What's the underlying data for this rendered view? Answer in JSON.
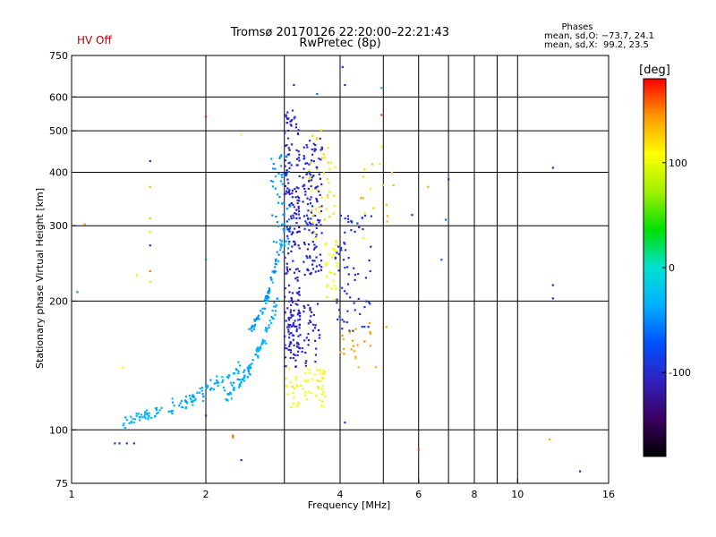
{
  "header": {
    "title_line1": "Tromsø 20170126 22:20:00–22:21:43",
    "title_line2": "RwPretec (8p)",
    "status": "HV Off"
  },
  "stats": {
    "heading": "Phases",
    "line1": "mean, sd,O: −73.7, 24.1",
    "line2": "mean, sd,X:  99.2, 23.5"
  },
  "chart_data": {
    "type": "scatter",
    "title": "Tromsø 20170126 22:20:00–22:21:43",
    "subtitle": "RwPretec (8p)",
    "xlabel": "Frequency [MHz]",
    "ylabel": "Stationary phase Virtual Height [km]",
    "xscale": "log",
    "yscale": "log",
    "xlim": [
      1,
      16
    ],
    "ylim": [
      75,
      750
    ],
    "xticks": [
      1,
      2,
      4,
      6,
      8,
      10,
      16
    ],
    "xgrid": [
      2,
      3,
      4,
      5,
      6,
      7,
      8,
      9,
      10
    ],
    "yticks": [
      75,
      100,
      200,
      300,
      400,
      500,
      600,
      750
    ],
    "ygrid": [
      100,
      200,
      300,
      400,
      500,
      600
    ],
    "colorbar": {
      "label": "[deg]",
      "range": [
        -180,
        180
      ],
      "ticks": [
        -100,
        0,
        100
      ],
      "colors": [
        "#000000",
        "#3a0060",
        "#3020c0",
        "#0050ff",
        "#00b0ff",
        "#00e0d0",
        "#00e000",
        "#a0f000",
        "#ffff00",
        "#ff9900",
        "#ff0000"
      ]
    },
    "clusters": [
      {
        "name": "low-trace",
        "xmin": 1.3,
        "xmax": 2.4,
        "ymin": 105,
        "ymax": 140,
        "phase": -35,
        "n": 120
      },
      {
        "name": "mid-trace",
        "xmin": 2.2,
        "xmax": 2.9,
        "ymin": 120,
        "ymax": 200,
        "phase": -35,
        "n": 100
      },
      {
        "name": "rise-trace",
        "xmin": 2.5,
        "xmax": 3.0,
        "ymin": 170,
        "ymax": 300,
        "phase": -45,
        "n": 70
      },
      {
        "name": "cyan-upper",
        "xmin": 2.8,
        "xmax": 3.1,
        "ymin": 260,
        "ymax": 440,
        "phase": -45,
        "n": 60
      },
      {
        "name": "blue-column-a",
        "xmin": 3.0,
        "xmax": 3.25,
        "ymin": 140,
        "ymax": 560,
        "phase": -105,
        "n": 200
      },
      {
        "name": "blue-column-b",
        "xmin": 3.3,
        "xmax": 3.65,
        "ymin": 230,
        "ymax": 480,
        "phase": -100,
        "n": 130
      },
      {
        "name": "blue-low",
        "xmin": 3.0,
        "xmax": 3.6,
        "ymin": 140,
        "ymax": 200,
        "phase": -105,
        "n": 70
      },
      {
        "name": "warm-low",
        "xmin": 3.0,
        "xmax": 3.7,
        "ymin": 113,
        "ymax": 140,
        "phase": 110,
        "n": 60
      },
      {
        "name": "warm-upper",
        "xmin": 3.4,
        "xmax": 3.9,
        "ymin": 280,
        "ymax": 520,
        "phase": 120,
        "n": 40
      },
      {
        "name": "yellow-mid",
        "xmin": 3.7,
        "xmax": 3.95,
        "ymin": 200,
        "ymax": 280,
        "phase": 105,
        "n": 30
      },
      {
        "name": "right-blue",
        "xmin": 3.9,
        "xmax": 4.7,
        "ymin": 170,
        "ymax": 320,
        "phase": -95,
        "n": 70
      },
      {
        "name": "right-warm",
        "xmin": 4.0,
        "xmax": 5.2,
        "ymin": 140,
        "ymax": 180,
        "phase": 140,
        "n": 22
      },
      {
        "name": "right-upper",
        "xmin": 4.3,
        "xmax": 5.3,
        "ymin": 270,
        "ymax": 430,
        "phase": 125,
        "n": 16
      }
    ],
    "isolated_points": [
      {
        "x": 1.03,
        "y": 210,
        "phase": -45
      },
      {
        "x": 1.07,
        "y": 302,
        "phase": 150
      },
      {
        "x": 1.25,
        "y": 93,
        "phase": -95
      },
      {
        "x": 1.28,
        "y": 93,
        "phase": -95
      },
      {
        "x": 1.33,
        "y": 93,
        "phase": -95
      },
      {
        "x": 1.38,
        "y": 93,
        "phase": -95
      },
      {
        "x": 1.3,
        "y": 140,
        "phase": 110
      },
      {
        "x": 1.4,
        "y": 230,
        "phase": 90
      },
      {
        "x": 1.5,
        "y": 425,
        "phase": -100
      },
      {
        "x": 1.5,
        "y": 370,
        "phase": 130
      },
      {
        "x": 1.5,
        "y": 312,
        "phase": 130
      },
      {
        "x": 1.5,
        "y": 290,
        "phase": 120
      },
      {
        "x": 1.5,
        "y": 270,
        "phase": -100
      },
      {
        "x": 1.5,
        "y": 235,
        "phase": 150
      },
      {
        "x": 1.5,
        "y": 222,
        "phase": 120
      },
      {
        "x": 2.0,
        "y": 540,
        "phase": 170
      },
      {
        "x": 2.0,
        "y": 108,
        "phase": -110
      },
      {
        "x": 2.0,
        "y": 250,
        "phase": -50
      },
      {
        "x": 2.3,
        "y": 96,
        "phase": 150
      },
      {
        "x": 2.3,
        "y": 97,
        "phase": 160
      },
      {
        "x": 2.4,
        "y": 85,
        "phase": -100
      },
      {
        "x": 2.4,
        "y": 490,
        "phase": 110
      },
      {
        "x": 3.15,
        "y": 640,
        "phase": -100
      },
      {
        "x": 3.55,
        "y": 610,
        "phase": -60
      },
      {
        "x": 4.05,
        "y": 705,
        "phase": -100
      },
      {
        "x": 4.1,
        "y": 104,
        "phase": -100
      },
      {
        "x": 4.1,
        "y": 640,
        "phase": -100
      },
      {
        "x": 4.95,
        "y": 630,
        "phase": -30
      },
      {
        "x": 4.95,
        "y": 545,
        "phase": 165
      },
      {
        "x": 4.95,
        "y": 460,
        "phase": 110
      },
      {
        "x": 5.8,
        "y": 318,
        "phase": -100
      },
      {
        "x": 6.0,
        "y": 90,
        "phase": 165
      },
      {
        "x": 6.3,
        "y": 370,
        "phase": 140
      },
      {
        "x": 6.75,
        "y": 250,
        "phase": -60
      },
      {
        "x": 6.9,
        "y": 310,
        "phase": -60
      },
      {
        "x": 7.0,
        "y": 385,
        "phase": -110
      },
      {
        "x": 11.8,
        "y": 95,
        "phase": 140
      },
      {
        "x": 12.0,
        "y": 410,
        "phase": -110
      },
      {
        "x": 12.0,
        "y": 218,
        "phase": -100
      },
      {
        "x": 12.0,
        "y": 203,
        "phase": -100
      },
      {
        "x": 13.8,
        "y": 80,
        "phase": -100
      }
    ]
  }
}
